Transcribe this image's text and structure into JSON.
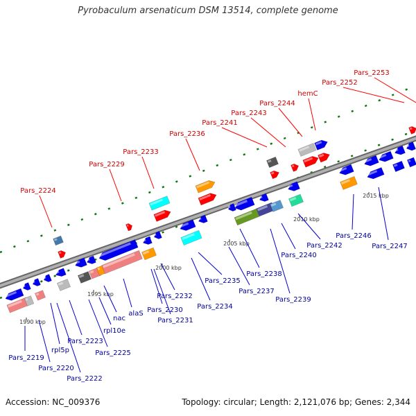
{
  "title": "Pyrobaculum arsenaticum DSM 13514, complete genome",
  "footer": {
    "accession": "Accession: NC_009376",
    "topology": "Topology: circular; Length: 2,121,076 bp; Genes: 2,344"
  },
  "colors": {
    "label_top": "#cc0000",
    "label_bottom": "#000099",
    "leader_top": "#ff0000",
    "leader_bottom": "#0000cc",
    "backbone": "#8a8a8a",
    "tick": "#117711",
    "gene_red": "#ff0000",
    "gene_blue": "#0000ee",
    "gene_orange": "#ff9900",
    "gene_cyan": "#00ffff",
    "gene_pink": "#f08080",
    "gene_gray": "#bbbbbb",
    "gene_darkgray": "#555555",
    "gene_steel": "#4477aa",
    "gene_olive": "#669922",
    "gene_slate": "#444499",
    "gene_mint": "#22dd99",
    "gene_lightblue": "#5599cc"
  },
  "kbp_ticks": [
    "1990 kbp",
    "1995 kbp",
    "2000 kbp",
    "2005 kbp",
    "2010 kbp",
    "2015 kbp"
  ],
  "top_labels": [
    "Pars_2224",
    "Pars_2229",
    "Pars_2233",
    "Pars_2236",
    "Pars_2241",
    "Pars_2243",
    "Pars_2244",
    "hemC",
    "Pars_2252",
    "Pars_2253"
  ],
  "bottom_labels": [
    "Pars_2219",
    "Pars_2220",
    "rpl5p",
    "Pars_2222",
    "Pars_2223",
    "Pars_2225",
    "rpl10e",
    "nac",
    "alaS",
    "Pars_2230",
    "Pars_2231",
    "Pars_2232",
    "Pars_2234",
    "Pars_2235",
    "Pars_2237",
    "Pars_2238",
    "Pars_2239",
    "Pars_2240",
    "Pars_2242",
    "Pars_2246",
    "Pars_2247"
  ]
}
